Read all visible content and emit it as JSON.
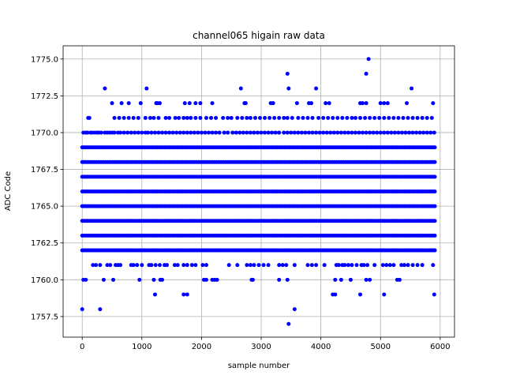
{
  "chart_data": {
    "type": "scatter",
    "title": "channel065 higain raw data",
    "xlabel": "sample number",
    "ylabel": "ADC Code",
    "xlim": [
      -320,
      6240
    ],
    "ylim": [
      1756.1,
      1775.9
    ],
    "xticks": [
      0,
      1000,
      2000,
      3000,
      4000,
      5000,
      6000
    ],
    "xtick_labels": [
      "0",
      "1000",
      "2000",
      "3000",
      "4000",
      "5000",
      "6000"
    ],
    "yticks": [
      1757.5,
      1760.0,
      1762.5,
      1765.0,
      1767.5,
      1770.0,
      1772.5,
      1775.0
    ],
    "ytick_labels": [
      "1757.5",
      "1760.0",
      "1762.5",
      "1765.0",
      "1767.5",
      "1770.0",
      "1772.5",
      "1775.0"
    ],
    "grid": true,
    "marker_color": "#0000ff",
    "x_range": [
      0,
      5920
    ],
    "dense_levels": [
      1762,
      1763,
      1764,
      1765,
      1766,
      1767,
      1768,
      1769
    ],
    "sparse_levels": [
      {
        "y": 1761,
        "x": [
          180,
          230,
          300,
          420,
          470,
          560,
          600,
          640,
          820,
          860,
          920,
          1000,
          1120,
          1160,
          1230,
          1300,
          1380,
          1420,
          1550,
          1600,
          1700,
          1760,
          1840,
          1900,
          2020,
          2080,
          2460,
          2600,
          2760,
          2820,
          2880,
          2960,
          3040,
          3120,
          3300,
          3360,
          3420,
          3560,
          3780,
          3850,
          3920,
          4060,
          4260,
          4300,
          4360,
          4400,
          4460,
          4520,
          4600,
          4680,
          4720,
          4780,
          4900,
          5040,
          5100,
          5160,
          5220,
          5350,
          5400,
          5460,
          5540,
          5620,
          5700,
          5880
        ]
      },
      {
        "y": 1770,
        "x": [
          20,
          60,
          90,
          140,
          170,
          210,
          250,
          280,
          320,
          380,
          420,
          460,
          500,
          540,
          600,
          640,
          700,
          760,
          820,
          880,
          940,
          1000,
          1060,
          1100,
          1160,
          1220,
          1280,
          1340,
          1400,
          1460,
          1520,
          1580,
          1640,
          1700,
          1760,
          1820,
          1880,
          1940,
          2000,
          2060,
          2120,
          2180,
          2240,
          2300,
          2380,
          2440,
          2520,
          2580,
          2640,
          2700,
          2760,
          2820,
          2880,
          2940,
          3000,
          3060,
          3120,
          3180,
          3240,
          3300,
          3380,
          3440,
          3500,
          3560,
          3620,
          3680,
          3740,
          3800,
          3860,
          3920,
          3980,
          4040,
          4100,
          4160,
          4220,
          4280,
          4340,
          4400,
          4460,
          4520,
          4580,
          4640,
          4700,
          4760,
          4820,
          4880,
          4940,
          5000,
          5060,
          5120,
          5180,
          5240,
          5300,
          5360,
          5420,
          5480,
          5540,
          5600,
          5660,
          5720,
          5780,
          5840,
          5900
        ]
      },
      {
        "y": 1771,
        "x": [
          100,
          120,
          540,
          620,
          700,
          780,
          860,
          940,
          1060,
          1140,
          1200,
          1280,
          1400,
          1460,
          1560,
          1620,
          1700,
          1760,
          1820,
          1900,
          1980,
          2080,
          2160,
          2240,
          2360,
          2440,
          2500,
          2600,
          2680,
          2760,
          2820,
          2900,
          2980,
          3060,
          3140,
          3220,
          3300,
          3380,
          3440,
          3520,
          3620,
          3700,
          3780,
          3860,
          3960,
          4040,
          4120,
          4200,
          4280,
          4360,
          4440,
          4520,
          4580,
          4660,
          4740,
          4820,
          4900,
          4980,
          5060,
          5140,
          5220,
          5300,
          5380,
          5460,
          5540,
          5620,
          5700,
          5780,
          5860
        ]
      },
      {
        "y": 1760,
        "x": [
          20,
          60,
          360,
          520,
          960,
          1200,
          1310,
          1340,
          2040,
          2080,
          2180,
          2220,
          2260,
          2840,
          2860,
          3300,
          3440,
          4240,
          4340,
          4500,
          4760,
          4820,
          5280,
          5320
        ]
      },
      {
        "y": 1772,
        "x": [
          500,
          660,
          780,
          980,
          1240,
          1260,
          1300,
          1720,
          1800,
          1900,
          1980,
          2180,
          2720,
          2740,
          3160,
          3200,
          3600,
          3800,
          3840,
          4080,
          4140,
          4660,
          4700,
          4760,
          5000,
          5060,
          5120,
          5440,
          5880
        ]
      },
      {
        "y": 1759,
        "x": [
          1220,
          1700,
          1760,
          4200,
          4240,
          4660,
          5060,
          5900
        ]
      },
      {
        "y": 1773,
        "x": [
          380,
          1080,
          2660,
          3460,
          3920,
          5520
        ]
      },
      {
        "y": 1758,
        "x": [
          0,
          300,
          3560
        ]
      },
      {
        "y": 1774,
        "x": [
          3440,
          4760
        ]
      },
      {
        "y": 1775,
        "x": [
          4800
        ]
      },
      {
        "y": 1757,
        "x": [
          3460
        ]
      }
    ]
  }
}
